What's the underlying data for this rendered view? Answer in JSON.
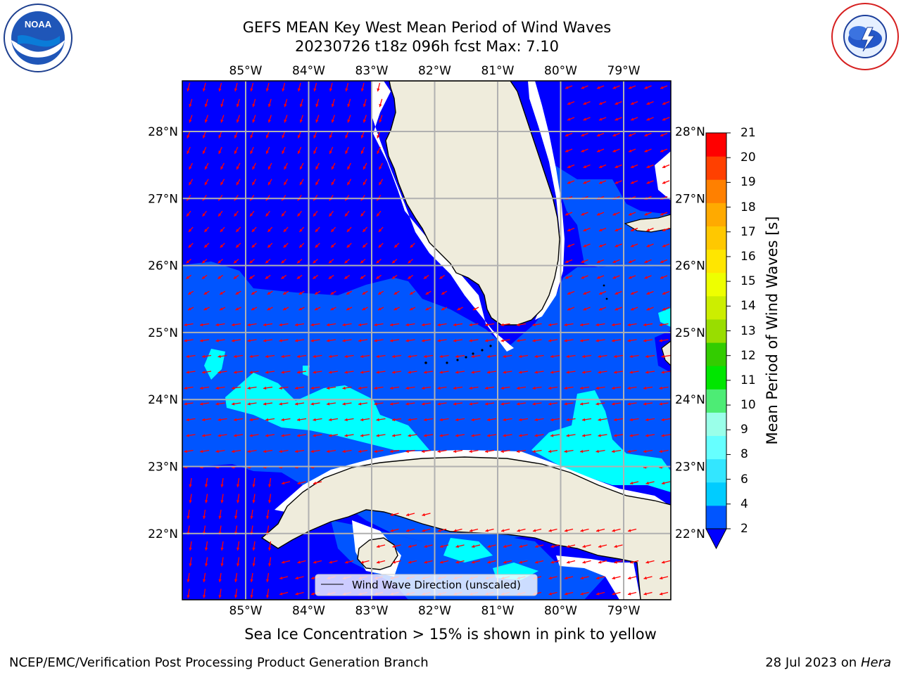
{
  "title": {
    "line1": "GEFS MEAN Key West Mean Period of Wind Waves",
    "line2": "20230726 t18z 096h fcst   Max: 7.10"
  },
  "map": {
    "lon_labels": [
      "85°W",
      "84°W",
      "83°W",
      "82°W",
      "81°W",
      "80°W",
      "79°W"
    ],
    "lat_labels": [
      "28°N",
      "27°N",
      "26°N",
      "25°N",
      "24°N",
      "23°N",
      "22°N"
    ],
    "legend_label": "Wind Wave Direction (unscaled)",
    "arrow_color": "#ff0000",
    "land_color": "#efecdc"
  },
  "colorbar": {
    "label": "Mean Period of Wind Waves [s]",
    "ticks": [
      "2",
      "4",
      "6",
      "8",
      "9",
      "10",
      "11",
      "12",
      "13",
      "14",
      "15",
      "16",
      "17",
      "18",
      "19",
      "20",
      "21"
    ],
    "colors": [
      "#0055ff",
      "#00ccff",
      "#33e6ff",
      "#66ffff",
      "#9affe9",
      "#4dec75",
      "#00e600",
      "#33cc00",
      "#99dd00",
      "#ccee00",
      "#eeff00",
      "#ffe600",
      "#ffc800",
      "#ffaa00",
      "#ff8000",
      "#ff4000",
      "#ff0000"
    ],
    "under_color": "#0000ff"
  },
  "caption": "Sea Ice Concentration > 15% is shown in pink to yellow",
  "footer": {
    "left": "NCEP/EMC/Verification Post Processing Product Generation Branch",
    "date": "28 Jul 2023 on ",
    "machine": "Hera"
  },
  "logos": {
    "noaa": "NOAA",
    "nws": "NATIONAL WEATHER SERVICE"
  }
}
